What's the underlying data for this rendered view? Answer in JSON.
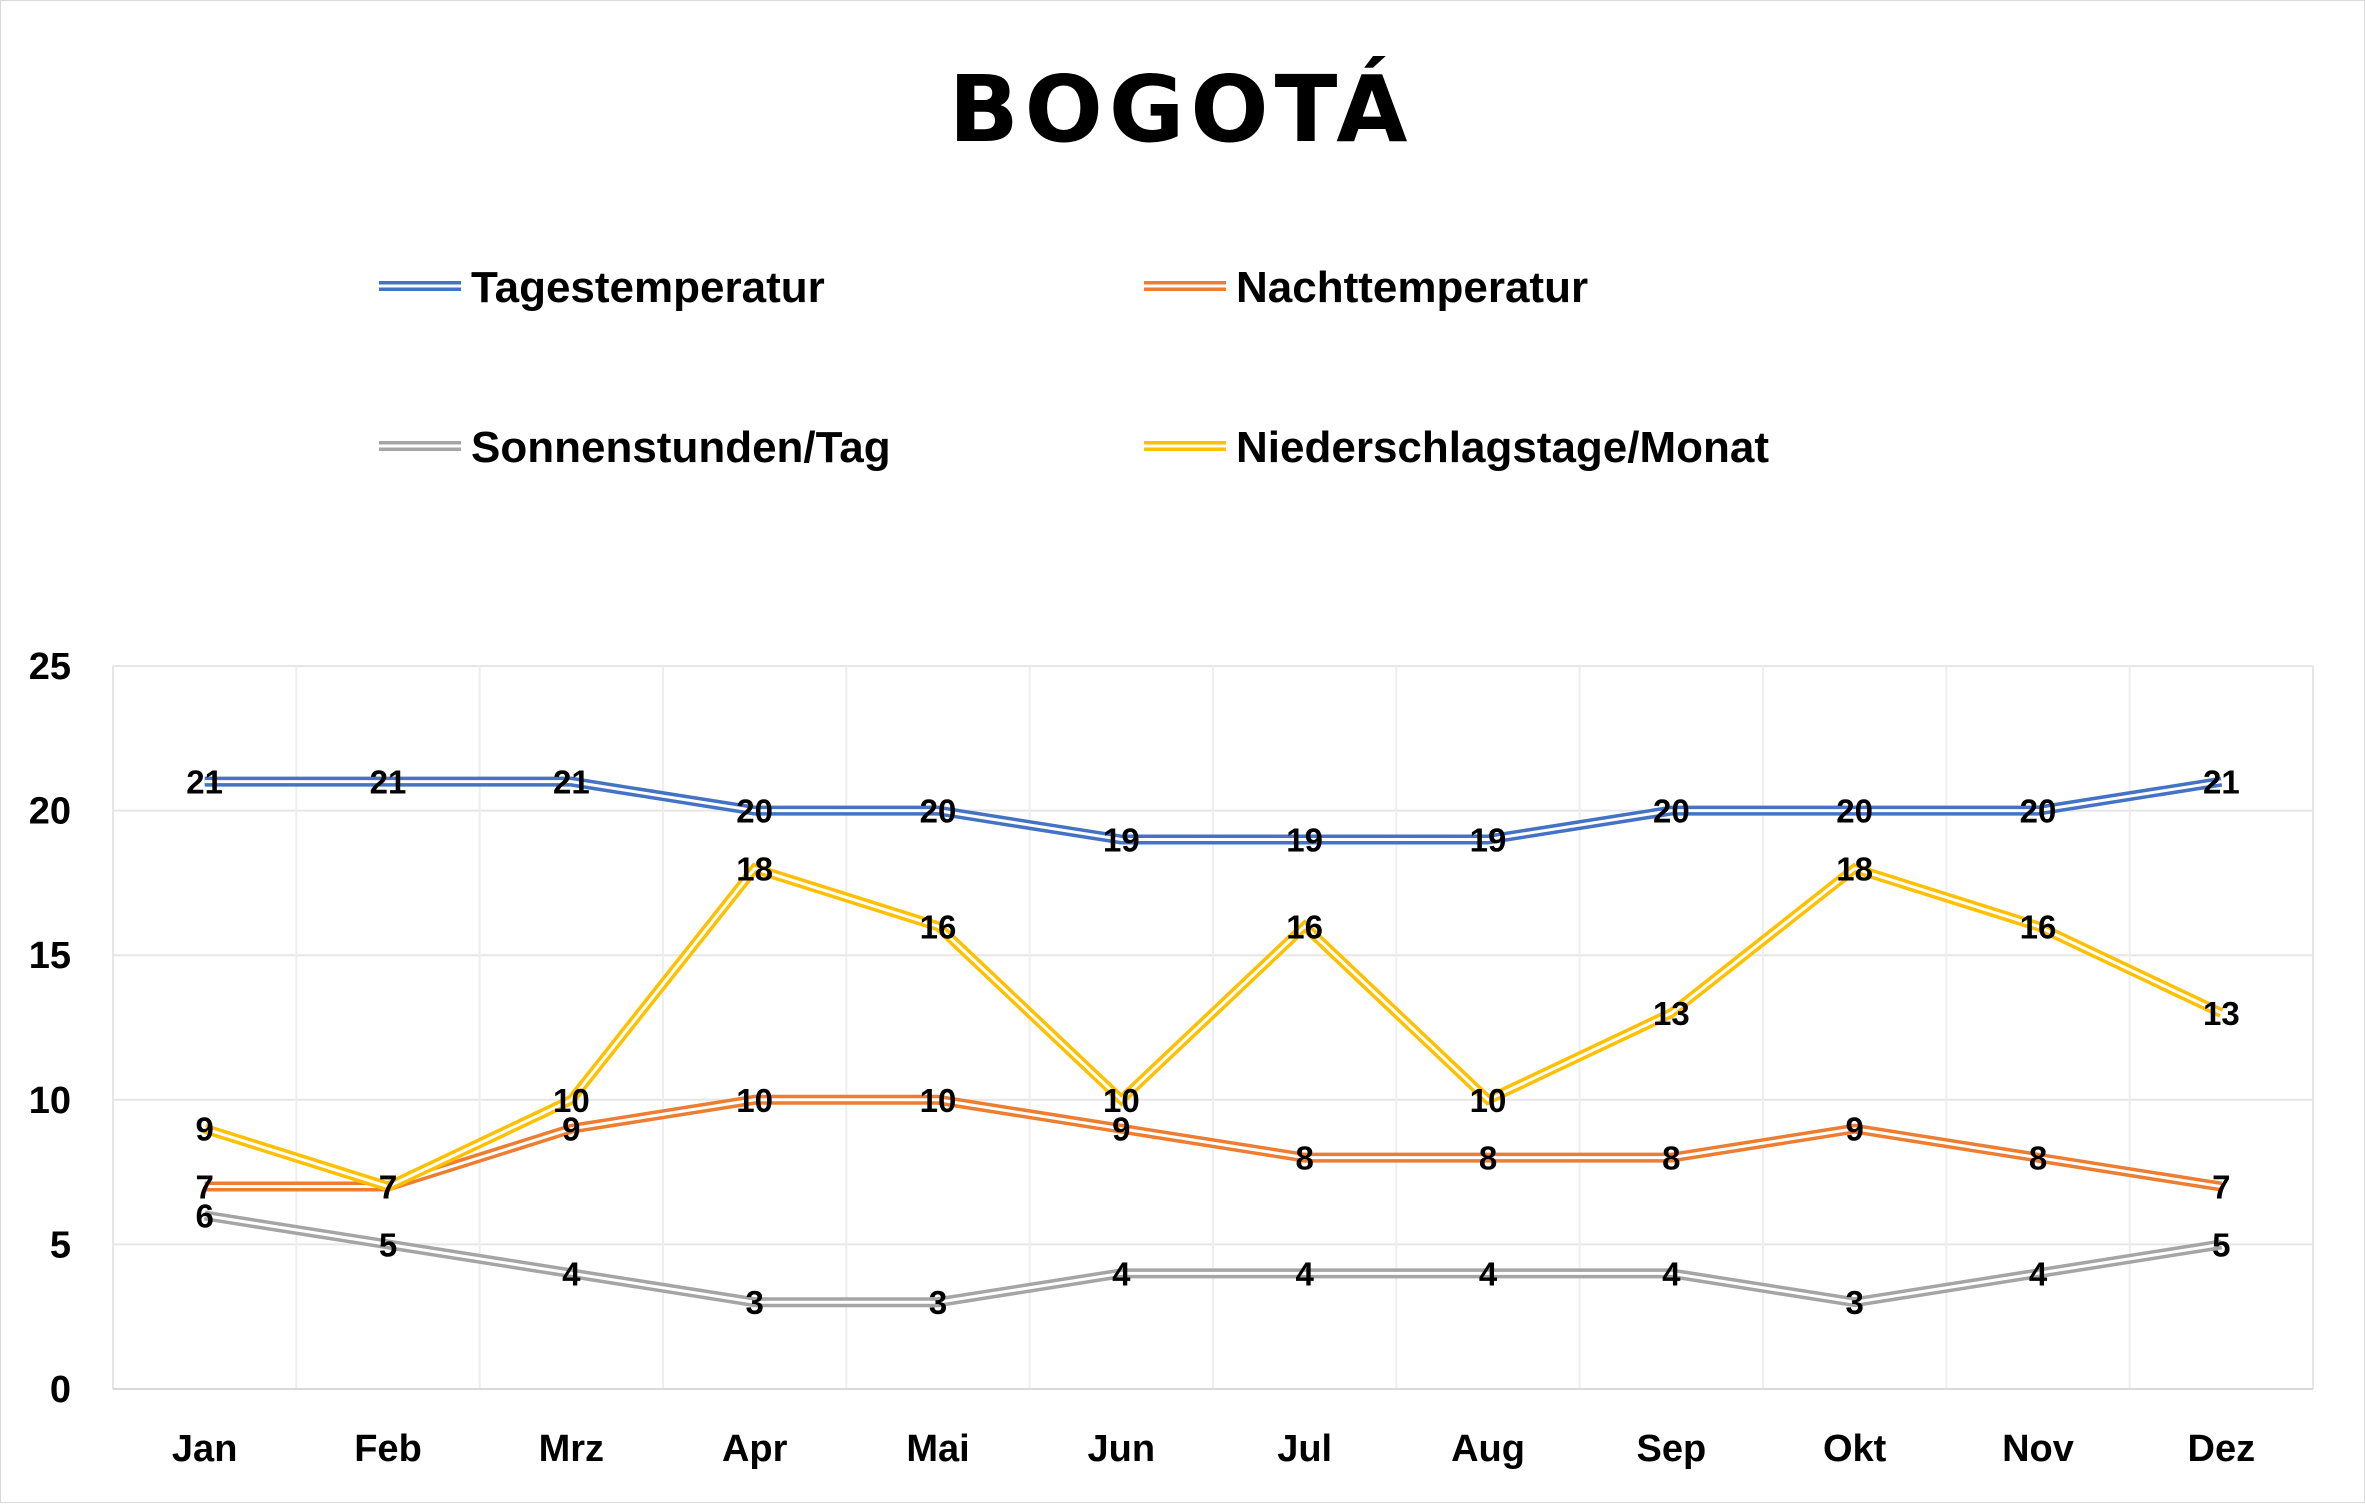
{
  "chart_data": {
    "type": "line",
    "title": "BOGOTÁ",
    "categories": [
      "Jan",
      "Feb",
      "Mrz",
      "Apr",
      "Mai",
      "Jun",
      "Jul",
      "Aug",
      "Sep",
      "Okt",
      "Nov",
      "Dez"
    ],
    "ylim": [
      0,
      25
    ],
    "yticks": [
      0,
      5,
      10,
      15,
      20,
      25
    ],
    "grid": true,
    "legend_position": "top",
    "data_labels": true,
    "series": [
      {
        "name": "Tagestemperatur",
        "color": "#4472C4",
        "values": [
          21,
          21,
          21,
          20,
          20,
          19,
          19,
          19,
          20,
          20,
          20,
          21
        ]
      },
      {
        "name": "Nachttemperatur",
        "color": "#ED7D31",
        "values": [
          7,
          7,
          9,
          10,
          10,
          9,
          8,
          8,
          8,
          9,
          8,
          7
        ]
      },
      {
        "name": "Sonnenstunden/Tag",
        "color": "#A5A5A5",
        "values": [
          6,
          5,
          4,
          3,
          3,
          4,
          4,
          4,
          4,
          3,
          4,
          5
        ]
      },
      {
        "name": "Niederschlagstage/Monat",
        "color": "#FFC000",
        "values": [
          9,
          7,
          10,
          18,
          16,
          10,
          16,
          10,
          13,
          18,
          16,
          13
        ]
      }
    ]
  }
}
